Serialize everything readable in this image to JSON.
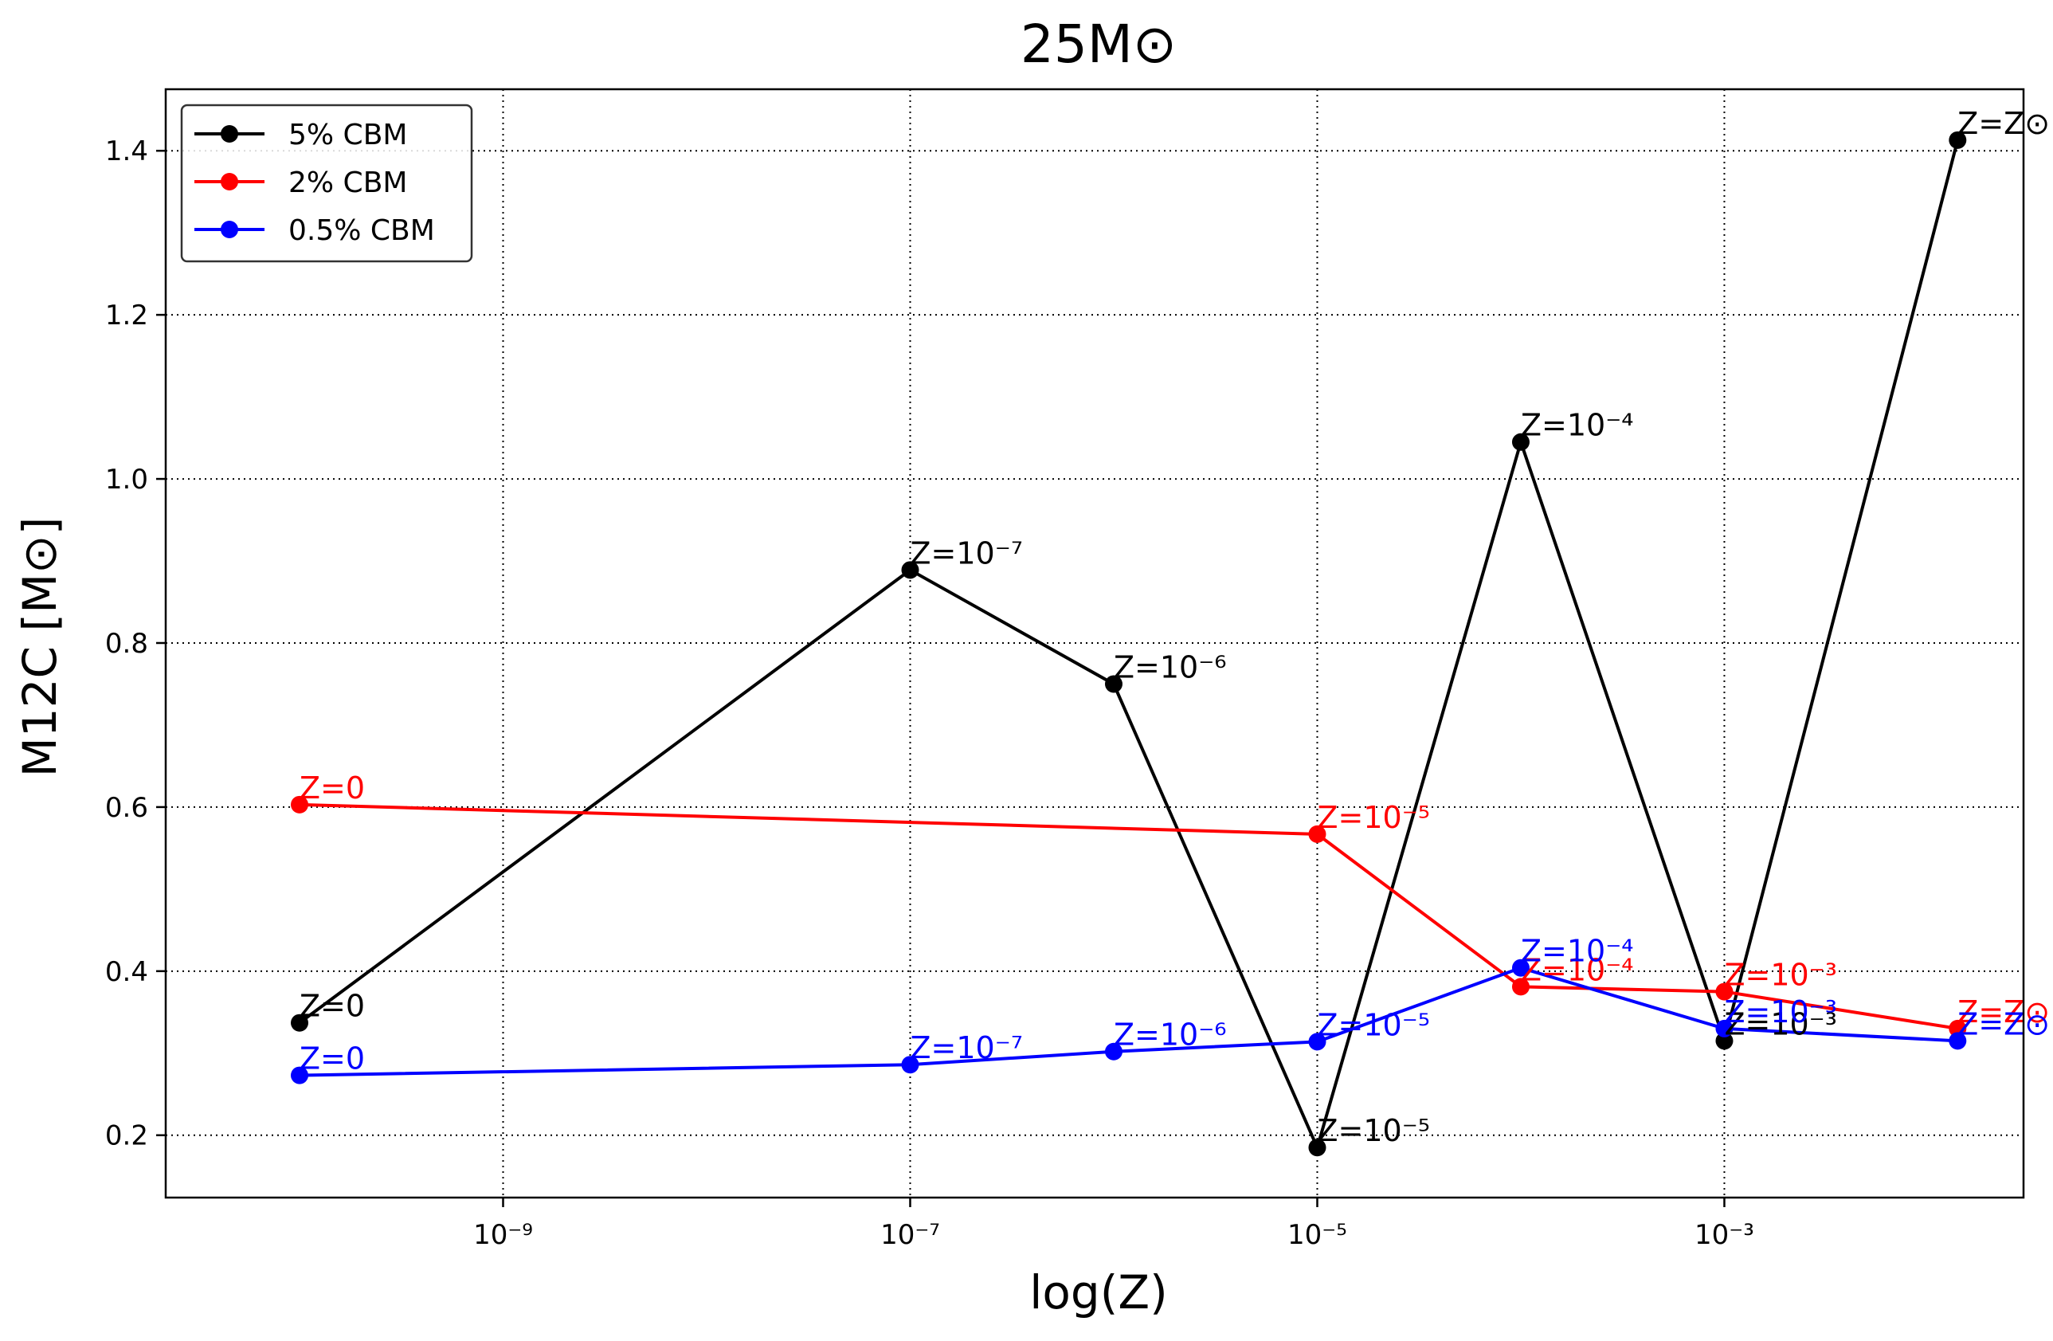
{
  "chart_data": {
    "type": "line",
    "title": "25M⊙",
    "xlabel": "log(Z)",
    "ylabel": "M12C [M⊙]",
    "x_scale": "log",
    "xlim": [
      2.2e-11,
      0.0295
    ],
    "ylim": [
      0.124,
      1.475
    ],
    "x_ticks": [
      {
        "value": 1e-09,
        "label": "10⁻⁹"
      },
      {
        "value": 1e-07,
        "label": "10⁻⁷"
      },
      {
        "value": 1e-05,
        "label": "10⁻⁵"
      },
      {
        "value": 0.001,
        "label": "10⁻³"
      }
    ],
    "y_ticks": [
      {
        "value": 0.2,
        "label": "0.2"
      },
      {
        "value": 0.4,
        "label": "0.4"
      },
      {
        "value": 0.6,
        "label": "0.6"
      },
      {
        "value": 0.8,
        "label": "0.8"
      },
      {
        "value": 1.0,
        "label": "1.0"
      },
      {
        "value": 1.2,
        "label": "1.2"
      },
      {
        "value": 1.4,
        "label": "1.4"
      }
    ],
    "grid": true,
    "legend_position": "top-left",
    "series": [
      {
        "name": "5% CBM",
        "color": "#000000",
        "points": [
          {
            "x": 1e-10,
            "y": 0.337,
            "label": "Z=0"
          },
          {
            "x": 1e-07,
            "y": 0.889,
            "label": "Z=10⁻⁷"
          },
          {
            "x": 1e-06,
            "y": 0.75,
            "label": "Z=10⁻⁶"
          },
          {
            "x": 1e-05,
            "y": 0.185,
            "label": "Z=10⁻⁵"
          },
          {
            "x": 0.0001,
            "y": 1.045,
            "label": "Z=10⁻⁴"
          },
          {
            "x": 0.001,
            "y": 0.315,
            "label": "Z=10⁻³"
          },
          {
            "x": 0.014,
            "y": 1.413,
            "label": "Z=Z⊙"
          }
        ]
      },
      {
        "name": "2% CBM",
        "color": "#ff0000",
        "points": [
          {
            "x": 1e-10,
            "y": 0.603,
            "label": "Z=0"
          },
          {
            "x": 1e-05,
            "y": 0.567,
            "label": "Z=10⁻⁵"
          },
          {
            "x": 0.0001,
            "y": 0.381,
            "label": "Z=10⁻⁴"
          },
          {
            "x": 0.001,
            "y": 0.375,
            "label": "Z=10⁻³"
          },
          {
            "x": 0.014,
            "y": 0.33,
            "label": "Z=Z⊙"
          }
        ]
      },
      {
        "name": "0.5% CBM",
        "color": "#0000ff",
        "points": [
          {
            "x": 1e-10,
            "y": 0.273,
            "label": "Z=0"
          },
          {
            "x": 1e-07,
            "y": 0.286,
            "label": "Z=10⁻⁷"
          },
          {
            "x": 1e-06,
            "y": 0.302,
            "label": "Z=10⁻⁶"
          },
          {
            "x": 1e-05,
            "y": 0.314,
            "label": "Z=10⁻⁵"
          },
          {
            "x": 0.0001,
            "y": 0.404,
            "label": "Z=10⁻⁴"
          },
          {
            "x": 0.001,
            "y": 0.33,
            "label": "Z=10⁻³"
          },
          {
            "x": 0.014,
            "y": 0.315,
            "label": "Z=Z⊙"
          }
        ]
      }
    ]
  }
}
